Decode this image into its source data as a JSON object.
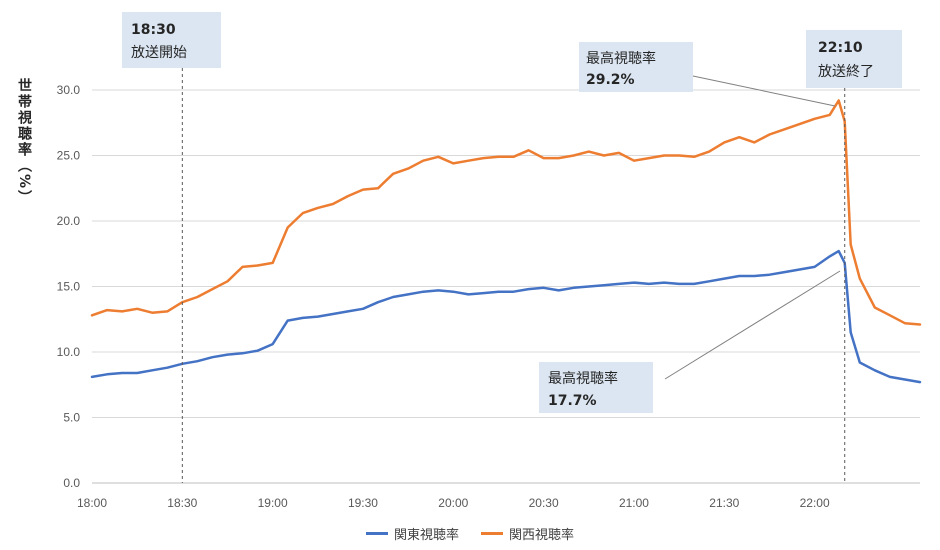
{
  "chart_data": {
    "type": "line",
    "ylabel": "世帯視聴率（%）",
    "ylim": [
      0,
      30
    ],
    "yticks": [
      "0.0",
      "5.0",
      "10.0",
      "15.0",
      "20.0",
      "25.0",
      "30.0"
    ],
    "xticks": [
      "18:00",
      "18:30",
      "19:00",
      "19:30",
      "20:00",
      "20:30",
      "21:00",
      "21:30",
      "22:00"
    ],
    "grid": true,
    "legend": "bottom",
    "series": [
      {
        "name": "関東視聴率",
        "color": "#4472c4",
        "x": [
          "18:00",
          "18:05",
          "18:10",
          "18:15",
          "18:20",
          "18:25",
          "18:30",
          "18:35",
          "18:40",
          "18:45",
          "18:50",
          "18:55",
          "19:00",
          "19:05",
          "19:10",
          "19:15",
          "19:20",
          "19:25",
          "19:30",
          "19:35",
          "19:40",
          "19:45",
          "19:50",
          "19:55",
          "20:00",
          "20:05",
          "20:10",
          "20:15",
          "20:20",
          "20:25",
          "20:30",
          "20:35",
          "20:40",
          "20:45",
          "20:50",
          "20:55",
          "21:00",
          "21:05",
          "21:10",
          "21:15",
          "21:20",
          "21:25",
          "21:30",
          "21:35",
          "21:40",
          "21:45",
          "21:50",
          "21:55",
          "22:00",
          "22:05",
          "22:08",
          "22:10",
          "22:12",
          "22:15",
          "22:20",
          "22:25",
          "22:30",
          "22:35"
        ],
        "values": [
          8.1,
          8.3,
          8.4,
          8.4,
          8.6,
          8.8,
          9.1,
          9.3,
          9.6,
          9.8,
          9.9,
          10.1,
          10.6,
          12.4,
          12.6,
          12.7,
          12.9,
          13.1,
          13.3,
          13.8,
          14.2,
          14.4,
          14.6,
          14.7,
          14.6,
          14.4,
          14.5,
          14.6,
          14.6,
          14.8,
          14.9,
          14.7,
          14.9,
          15.0,
          15.1,
          15.2,
          15.3,
          15.2,
          15.3,
          15.2,
          15.2,
          15.4,
          15.6,
          15.8,
          15.8,
          15.9,
          16.1,
          16.3,
          16.5,
          17.3,
          17.7,
          16.8,
          11.5,
          9.2,
          8.6,
          8.1,
          7.9,
          7.7
        ]
      },
      {
        "name": "関西視聴率",
        "color": "#ed7d31",
        "x": [
          "18:00",
          "18:05",
          "18:10",
          "18:15",
          "18:20",
          "18:25",
          "18:30",
          "18:35",
          "18:40",
          "18:45",
          "18:50",
          "18:55",
          "19:00",
          "19:05",
          "19:10",
          "19:15",
          "19:20",
          "19:25",
          "19:30",
          "19:35",
          "19:40",
          "19:45",
          "19:50",
          "19:55",
          "20:00",
          "20:05",
          "20:10",
          "20:15",
          "20:20",
          "20:25",
          "20:30",
          "20:35",
          "20:40",
          "20:45",
          "20:50",
          "20:55",
          "21:00",
          "21:05",
          "21:10",
          "21:15",
          "21:20",
          "21:25",
          "21:30",
          "21:35",
          "21:40",
          "21:45",
          "21:50",
          "21:55",
          "22:00",
          "22:05",
          "22:08",
          "22:10",
          "22:12",
          "22:15",
          "22:20",
          "22:25",
          "22:30",
          "22:35"
        ],
        "values": [
          12.8,
          13.2,
          13.1,
          13.3,
          13.0,
          13.1,
          13.8,
          14.2,
          14.8,
          15.4,
          16.5,
          16.6,
          16.8,
          19.5,
          20.6,
          21.0,
          21.3,
          21.9,
          22.4,
          22.5,
          23.6,
          24.0,
          24.6,
          24.9,
          24.4,
          24.6,
          24.8,
          24.9,
          24.9,
          25.4,
          24.8,
          24.8,
          25.0,
          25.3,
          25.0,
          25.2,
          24.6,
          24.8,
          25.0,
          25.0,
          24.9,
          25.3,
          26.0,
          26.4,
          26.0,
          26.6,
          27.0,
          27.4,
          27.8,
          28.1,
          29.2,
          27.6,
          18.2,
          15.6,
          13.4,
          12.8,
          12.2,
          12.1
        ]
      }
    ],
    "annotations": {
      "start": {
        "time": "18:30",
        "label": "放送開始"
      },
      "end": {
        "time": "22:10",
        "label": "放送終了"
      },
      "peak_kansai": {
        "label": "最高視聴率",
        "value": "29.2%"
      },
      "peak_kanto": {
        "label": "最高視聴率",
        "value": "17.7%"
      }
    }
  }
}
